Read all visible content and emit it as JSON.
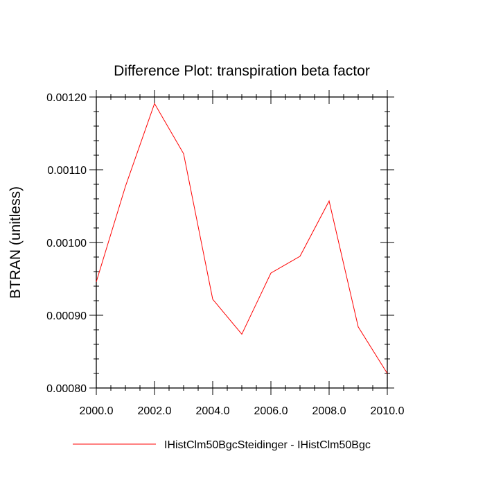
{
  "chart_data": {
    "type": "line",
    "title": "Difference Plot: transpiration beta factor",
    "ylabel": "BTRAN  (unitless)",
    "xlabel": "",
    "xlim": [
      2000,
      2010
    ],
    "ylim": [
      0.0008,
      0.0012
    ],
    "x_tick_labels": [
      "2000.0",
      "2002.0",
      "2004.0",
      "2006.0",
      "2008.0",
      "2010.0"
    ],
    "y_tick_labels": [
      "0.00080",
      "0.00090",
      "0.00100",
      "0.00110",
      "0.00120"
    ],
    "grid": false,
    "legend_position": "bottom",
    "series": [
      {
        "name": "IHistClm50BgcSteidinger - IHistClm50Bgc",
        "color": "#ff0000",
        "x": [
          2000,
          2001,
          2002,
          2003,
          2004,
          2005,
          2006,
          2007,
          2008,
          2009,
          2010
        ],
        "values": [
          0.000946,
          0.001077,
          0.001191,
          0.001122,
          0.000922,
          0.000874,
          0.000958,
          0.000981,
          0.001057,
          0.000884,
          0.00082
        ]
      }
    ]
  }
}
